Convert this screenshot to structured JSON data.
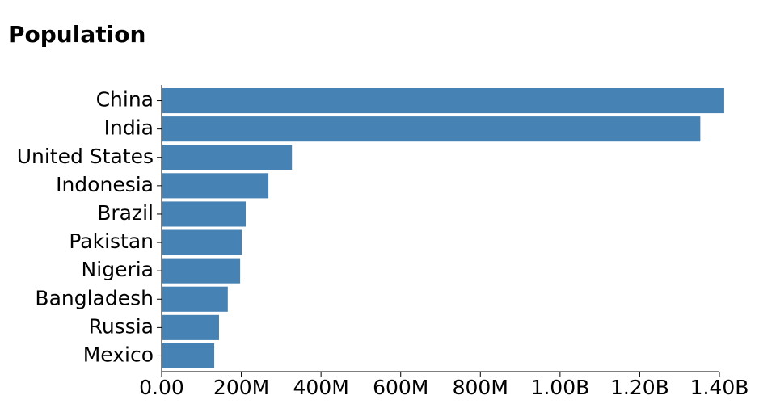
{
  "chart_data": {
    "type": "bar",
    "orientation": "horizontal",
    "title": "Population",
    "categories": [
      "China",
      "India",
      "United States",
      "Indonesia",
      "Brazil",
      "Pakistan",
      "Nigeria",
      "Bangladesh",
      "Russia",
      "Mexico"
    ],
    "values": [
      1410000000,
      1350000000,
      325000000,
      266000000,
      209000000,
      199000000,
      195000000,
      164000000,
      142000000,
      130000000
    ],
    "color": "#4682b4",
    "xlim": [
      0,
      1400000000
    ],
    "xticks": [
      {
        "value": 0,
        "label": "0.00"
      },
      {
        "value": 200000000,
        "label": "200M"
      },
      {
        "value": 400000000,
        "label": "400M"
      },
      {
        "value": 600000000,
        "label": "600M"
      },
      {
        "value": 800000000,
        "label": "800M"
      },
      {
        "value": 1000000000,
        "label": "1.00B"
      },
      {
        "value": 1200000000,
        "label": "1.20B"
      },
      {
        "value": 1400000000,
        "label": "1.40B"
      }
    ],
    "grid": false
  }
}
